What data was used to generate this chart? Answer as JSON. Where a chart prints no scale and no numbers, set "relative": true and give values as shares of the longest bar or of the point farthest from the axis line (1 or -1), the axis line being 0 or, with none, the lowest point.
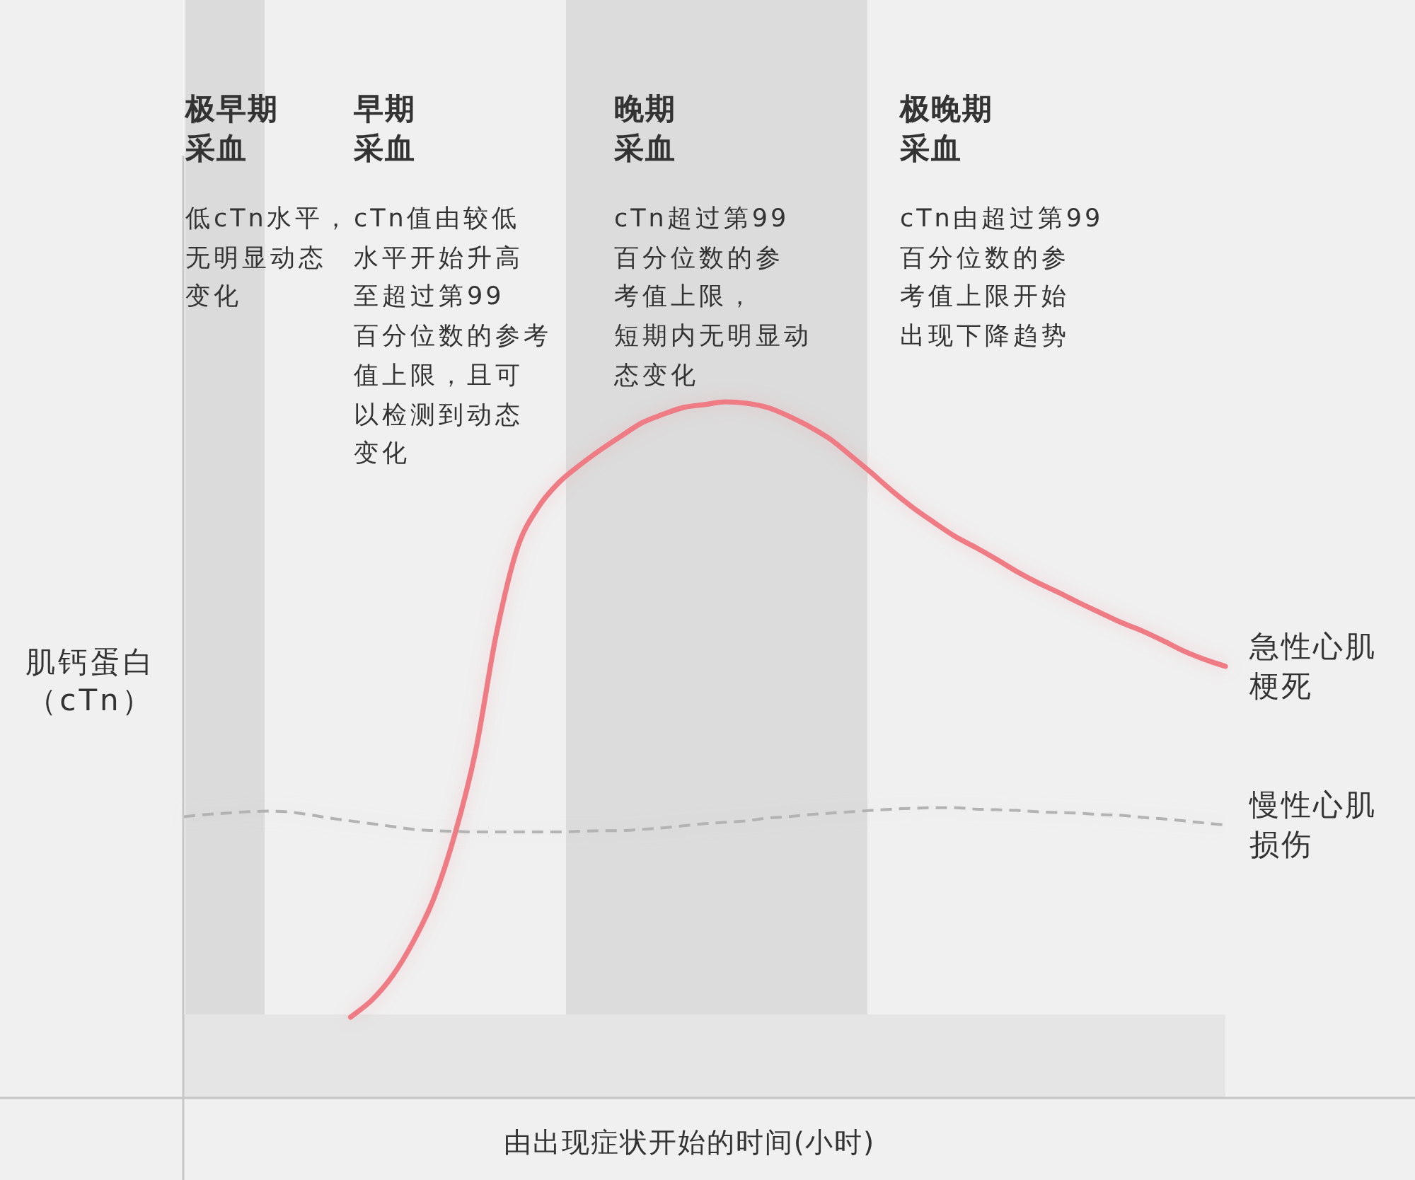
{
  "chart_data": {
    "type": "line",
    "relative": true,
    "xlabel": "由出现症状开始的时间(小时)",
    "ylabel": "肌钙蛋白（cTn）",
    "categories": [
      null,
      null,
      null,
      null,
      null,
      null,
      null,
      null,
      null,
      null,
      null,
      null,
      null,
      null,
      null,
      null,
      null,
      null,
      null,
      null,
      null,
      null,
      null,
      null,
      null,
      null,
      null,
      null,
      null,
      null,
      null,
      null,
      null,
      null,
      null,
      null,
      null,
      null,
      null,
      null,
      null,
      null,
      null,
      null,
      null,
      null,
      null,
      null,
      null,
      null,
      null
    ],
    "series": [
      {
        "name": "急性心肌梗死",
        "color": "#ef7b84",
        "line_style": "solid",
        "values": [
          null,
          null,
          null,
          null,
          null,
          null,
          null,
          null,
          0.116,
          0.14,
          0.175,
          0.224,
          0.287,
          0.378,
          0.498,
          0.667,
          0.789,
          0.848,
          0.884,
          0.909,
          0.931,
          0.951,
          0.97,
          0.982,
          0.992,
          0.996,
          1.0,
          0.998,
          0.992,
          0.98,
          0.965,
          0.947,
          0.923,
          0.898,
          0.872,
          0.848,
          0.827,
          0.807,
          0.791,
          0.774,
          0.756,
          0.74,
          0.726,
          0.711,
          0.697,
          0.683,
          0.671,
          0.657,
          0.642,
          0.63,
          0.62
        ]
      },
      {
        "name": "慢性心肌损伤",
        "color": "#b3b3b3",
        "line_style": "dashed",
        "values": [
          0.404,
          0.407,
          0.409,
          0.411,
          0.412,
          0.411,
          0.407,
          0.402,
          0.398,
          0.394,
          0.39,
          0.386,
          0.384,
          0.383,
          0.382,
          0.382,
          0.382,
          0.382,
          0.382,
          0.383,
          0.384,
          0.384,
          0.386,
          0.388,
          0.391,
          0.394,
          0.396,
          0.398,
          0.402,
          0.404,
          0.407,
          0.409,
          0.411,
          0.413,
          0.415,
          0.416,
          0.417,
          0.417,
          0.415,
          0.414,
          0.413,
          0.411,
          0.41,
          0.409,
          0.407,
          0.406,
          0.403,
          0.401,
          0.398,
          0.395,
          0.392
        ]
      }
    ],
    "bands": [
      {
        "axis": "y",
        "from": 0,
        "to": 0.12,
        "color": "#e5e5e5"
      }
    ],
    "annotations": [
      "极早期采血",
      "低cTn水平，",
      "无明显动态",
      "变化",
      "早期采血",
      "cTn值由较低",
      "水平开始升高",
      "至超过第99",
      "百分位数的参考",
      "值上限，且可",
      "以检测到动态",
      "变化",
      "晚期采血",
      "cTn超过第99",
      "百分位数的参",
      "考值上限，",
      "短期内无明显动",
      "态变化",
      "极晚期采血",
      "cTn由超过第99",
      "百分位数的参",
      "考值上限开始",
      "出现下降趋势"
    ],
    "legend": false
  }
}
